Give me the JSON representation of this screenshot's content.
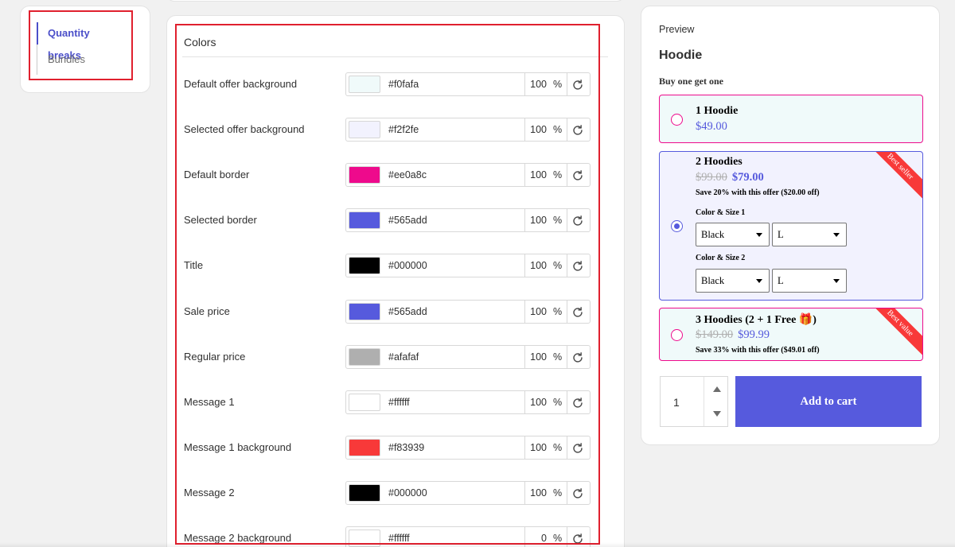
{
  "nav": {
    "items": [
      {
        "label": "Quantity breaks",
        "active": true
      },
      {
        "label": "Bundles",
        "active": false
      }
    ]
  },
  "colors": {
    "title": "Colors",
    "rows": [
      {
        "label": "Default offer background",
        "hex": "#f0fafa",
        "opacity": "100",
        "swatch": "#f0fafa"
      },
      {
        "label": "Selected offer background",
        "hex": "#f2f2fe",
        "opacity": "100",
        "swatch": "#f2f2fe"
      },
      {
        "label": "Default border",
        "hex": "#ee0a8c",
        "opacity": "100",
        "swatch": "#ee0a8c"
      },
      {
        "label": "Selected border",
        "hex": "#565add",
        "opacity": "100",
        "swatch": "#565add"
      },
      {
        "label": "Title",
        "hex": "#000000",
        "opacity": "100",
        "swatch": "#000000"
      },
      {
        "label": "Sale price",
        "hex": "#565add",
        "opacity": "100",
        "swatch": "#565add"
      },
      {
        "label": "Regular price",
        "hex": "#afafaf",
        "opacity": "100",
        "swatch": "#afafaf"
      },
      {
        "label": "Message 1",
        "hex": "#ffffff",
        "opacity": "100",
        "swatch": "#ffffff"
      },
      {
        "label": "Message 1 background",
        "hex": "#f83939",
        "opacity": "100",
        "swatch": "#f83939"
      },
      {
        "label": "Message 2",
        "hex": "#000000",
        "opacity": "100",
        "swatch": "#000000"
      },
      {
        "label": "Message 2 background",
        "hex": "#ffffff",
        "opacity": "0",
        "swatch": "#ffffff"
      }
    ],
    "percent_sign": "%",
    "reset_icon": "refresh-icon"
  },
  "preview": {
    "label": "Preview",
    "product_title": "Hoodie",
    "bundle_heading": "Buy one get one",
    "offers": [
      {
        "title": "1 Hoodie",
        "regular": "",
        "sale": "$49.00"
      },
      {
        "title": "2 Hoodies",
        "regular": "$99.00",
        "sale": "$79.00",
        "message": "Save 20% with this offer ($20.00 off)",
        "ribbon": "Best seller",
        "variants": [
          {
            "label": "Color & Size 1",
            "color": "Black",
            "size": "L"
          },
          {
            "label": "Color & Size 2",
            "color": "Black",
            "size": "L"
          }
        ]
      },
      {
        "title": "3 Hoodies (2 + 1 Free 🎁)",
        "regular": "$149.00",
        "sale": "$99.99",
        "message": "Save 33% with this offer ($49.01 off)",
        "ribbon": "Best value"
      }
    ],
    "quantity": "1",
    "add_to_cart": "Add to cart"
  }
}
